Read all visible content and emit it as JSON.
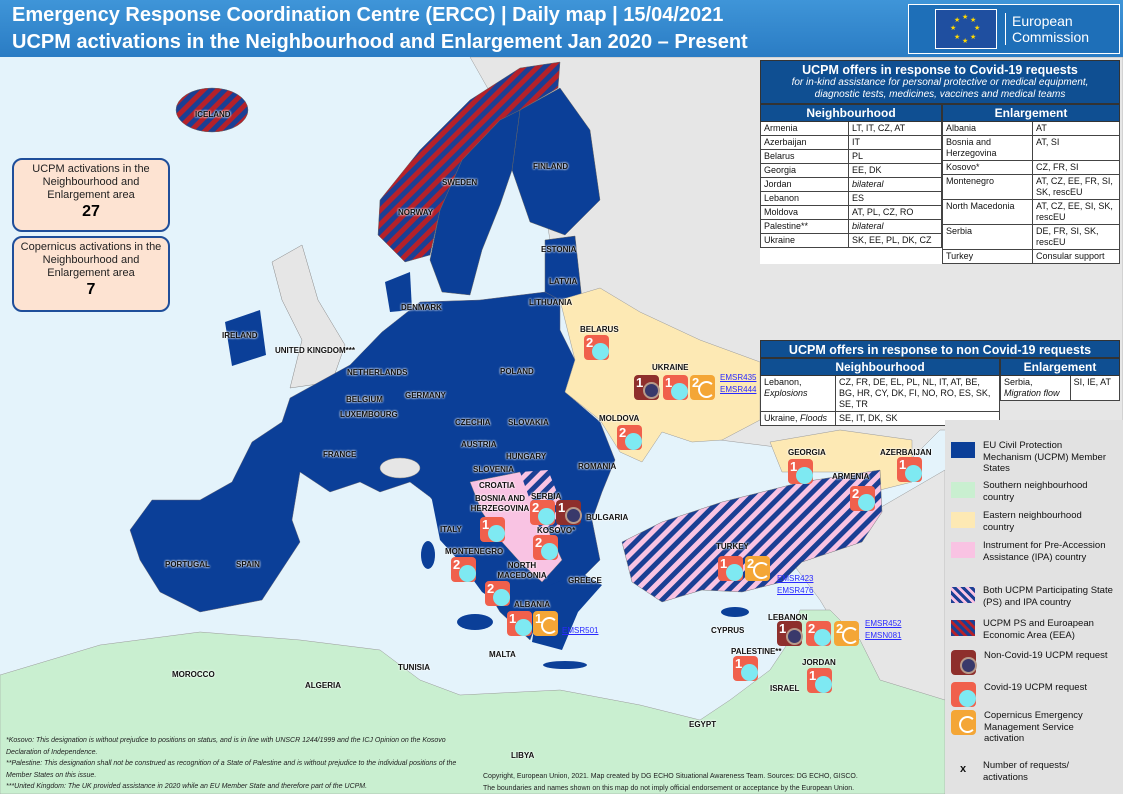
{
  "header": {
    "title_line1": "Emergency Response Coordination Centre (ERCC)  | Daily map  |  15/04/2021",
    "title_line2": "UCPM activations in the Neighbourhood and Enlargement  Jan 2020 – Present",
    "logo_text_1": "European",
    "logo_text_2": "Commission"
  },
  "summary": {
    "ucpm_label": "UCPM activations in the Neighbourhood and Enlargement area",
    "ucpm_count": "27",
    "copernicus_label": "Copernicus activations in the Neighbourhood and Enlargement  area",
    "copernicus_count": "7"
  },
  "covid_table": {
    "title": "UCPM offers in response to Covid-19 requests",
    "subtitle": "for in-kind assistance for personal protective  or medical equipment, diagnostic tests,  medicines, vaccines  and medical teams",
    "col_neighbourhood": "Neighbourhood",
    "col_enlargement": "Enlargement",
    "neighbourhood": [
      [
        "Armenia",
        "LT, IT, CZ, AT"
      ],
      [
        "Azerbaijan",
        "IT"
      ],
      [
        "Belarus",
        "PL"
      ],
      [
        "Georgia",
        "EE, DK"
      ],
      [
        "Jordan",
        "bilateral"
      ],
      [
        "Lebanon",
        "ES"
      ],
      [
        "Moldova",
        "AT,  PL, CZ, RO"
      ],
      [
        "Palestine**",
        "bilateral"
      ],
      [
        "Ukraine",
        "SK, EE, PL, DK, CZ"
      ]
    ],
    "enlargement": [
      [
        "Albania",
        "AT"
      ],
      [
        "Bosnia and Herzegovina",
        "AT, SI"
      ],
      [
        "Kosovo*",
        "CZ, FR, SI"
      ],
      [
        "Montenegro",
        "AT, CZ, EE, FR,  SI, SK, rescEU"
      ],
      [
        "North Macedonia",
        "AT, CZ, EE, SI, SK, rescEU"
      ],
      [
        "Serbia",
        "DE, FR, SI, SK, rescEU"
      ],
      [
        "Turkey",
        "Consular support"
      ]
    ]
  },
  "noncovid_table": {
    "title": "UCPM offers in response to non Covid-19 requests",
    "col_neighbourhood": "Neighbourhood",
    "col_enlargement": "Enlargement",
    "neighbourhood": [
      {
        "country": "Lebanon,",
        "event": "Explosions",
        "offers": "CZ, FR, DE, EL, PL, NL, IT, AT, BE, BG, HR, CY, DK, FI, NO, RO, ES, SK, SE, TR"
      },
      {
        "country": "Ukraine,",
        "event": "Floods",
        "offers": "SE, IT, DK, SK"
      }
    ],
    "enlargement": [
      {
        "country": "Serbia,",
        "event": "Migration flow",
        "offers": "SI, IE, AT"
      }
    ]
  },
  "countries": [
    "ICELAND",
    "NORWAY",
    "SWEDEN",
    "FINLAND",
    "ESTONIA",
    "LATVIA",
    "LITHUANIA",
    "DENMARK",
    "IRELAND",
    "UNITED KINGDOM***",
    "NETHERLANDS",
    "BELGIUM",
    "LUXEMBOURG",
    "GERMANY",
    "POLAND",
    "CZECHIA",
    "SLOVAKIA",
    "AUSTRIA",
    "HUNGARY",
    "FRANCE",
    "SLOVENIA",
    "CROATIA",
    "ROMANIA",
    "BULGARIA",
    "ITALY",
    "PORTUGAL",
    "SPAIN",
    "GREECE",
    "MALTA",
    "CYPRUS",
    "BELARUS",
    "UKRAINE",
    "MOLDOVA",
    "GEORGIA",
    "ARMENIA",
    "AZERBAIJAN",
    "SERBIA",
    "BOSNIA AND HERZEGOVINA",
    "KOSOVO*",
    "MONTENEGRO",
    "NORTH MACEDONIA",
    "ALBANIA",
    "TURKEY",
    "LEBANON",
    "PALESTINE**",
    "JORDAN",
    "ISRAEL",
    "MOROCCO",
    "ALGERIA",
    "TUNISIA",
    "LIBYA",
    "EGYPT"
  ],
  "markers": [
    {
      "country": "Belarus",
      "type": "covid",
      "count": "2"
    },
    {
      "country": "Ukraine",
      "type": "noncovid",
      "count": "1"
    },
    {
      "country": "Ukraine",
      "type": "covid",
      "count": "1"
    },
    {
      "country": "Ukraine",
      "type": "copernicus",
      "count": "2"
    },
    {
      "country": "Moldova",
      "type": "covid",
      "count": "2"
    },
    {
      "country": "Georgia",
      "type": "covid",
      "count": "1"
    },
    {
      "country": "Azerbaijan",
      "type": "covid",
      "count": "1"
    },
    {
      "country": "Armenia",
      "type": "covid",
      "count": "2"
    },
    {
      "country": "Serbia",
      "type": "covid",
      "count": "2"
    },
    {
      "country": "Serbia",
      "type": "noncovid",
      "count": "1"
    },
    {
      "country": "Bosnia and Herzegovina",
      "type": "covid",
      "count": "1"
    },
    {
      "country": "Kosovo",
      "type": "covid",
      "count": "2"
    },
    {
      "country": "Montenegro",
      "type": "covid",
      "count": "2"
    },
    {
      "country": "North Macedonia",
      "type": "covid",
      "count": "2"
    },
    {
      "country": "Albania",
      "type": "covid",
      "count": "1"
    },
    {
      "country": "Albania",
      "type": "copernicus",
      "count": "1"
    },
    {
      "country": "Turkey",
      "type": "covid",
      "count": "1"
    },
    {
      "country": "Turkey",
      "type": "copernicus",
      "count": "2"
    },
    {
      "country": "Lebanon",
      "type": "noncovid",
      "count": "1"
    },
    {
      "country": "Lebanon",
      "type": "covid",
      "count": "2"
    },
    {
      "country": "Lebanon",
      "type": "copernicus",
      "count": "2"
    },
    {
      "country": "Palestine",
      "type": "covid",
      "count": "1"
    },
    {
      "country": "Jordan",
      "type": "covid",
      "count": "1"
    }
  ],
  "emsr_links": {
    "ukraine": [
      "EMSR435",
      "EMSR444"
    ],
    "albania": [
      "EMSR501"
    ],
    "turkey": [
      "EMSR423",
      "EMSR476"
    ],
    "lebanon": [
      "EMSR452",
      "EMSN081"
    ]
  },
  "legend": [
    "EU  Civil Protection Mechanism (UCPM) Member States",
    "Southern neighbourhood country",
    "Eastern neighbourhood country",
    "Instrument for Pre-Accession Assistance (IPA) country",
    "Both UCPM  Participating State (PS) and IPA  country",
    "UCPM  PS and Euroapean Economic Area (EEA)",
    "Non-Covid-19 UCPM request",
    "Covid-19 UCPM  request",
    "Copernicus Emergency Management Service activation",
    "Number of requests/ activations"
  ],
  "legend_x": "x",
  "colors": {
    "eu": "#0b3f98",
    "southern": "#c9efd0",
    "eastern": "#fde9b4",
    "ipa": "#f9c3e3",
    "sea": "#e4f3fb",
    "land": "#e6e6e6",
    "norway_red": "#b5212a"
  },
  "footnotes": [
    "*Kosovo: This designation is without prejudice to positions on status, and is in line with UNSCR 1244/1999 and the ICJ Opinion on the Kosovo Declaration of Independence.",
    "**Palestine:  This designation shall not be construed as recognition of a State of Palestine and is without prejudice to the individual positions of the Member States on this issue.",
    "***United  Kingdom: The UK provided assistance in 2020 while an EU Member State and therefore  part of the UCPM."
  ],
  "copyright": [
    "Copyright, European  Union, 2021. Map created  by DG ECHO Situational Awareness  Team.  Sources: DG ECHO, GISCO.",
    "The boundaries and names  shown on this map do not imply official endorsement  or acceptance  by the European  Union."
  ]
}
